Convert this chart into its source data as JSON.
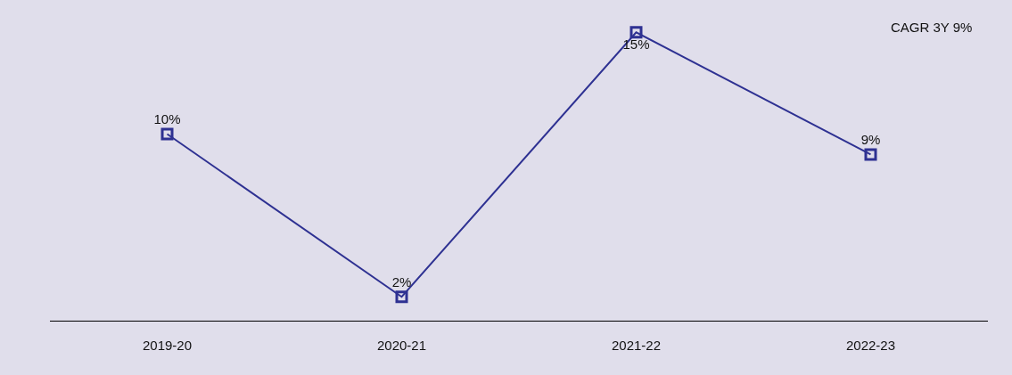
{
  "chart_data": {
    "type": "line",
    "categories": [
      "2019-20",
      "2020-21",
      "2021-22",
      "2022-23"
    ],
    "values": [
      10,
      2,
      15,
      9
    ],
    "value_labels": [
      "10%",
      "2%",
      "15%",
      "9%"
    ],
    "color": "#2e3192",
    "marker": "square",
    "line_style": "solid",
    "grid": false,
    "legend": false,
    "tick_labels": "x",
    "annotations": [
      "CAGR 3Y 9%"
    ]
  }
}
